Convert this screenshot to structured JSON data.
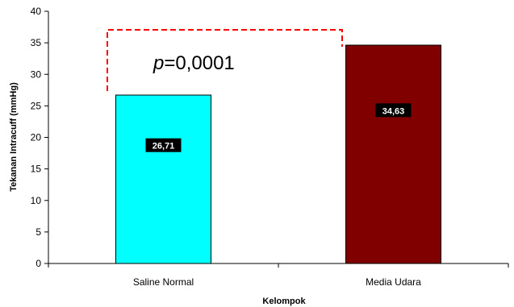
{
  "chart_data": {
    "type": "bar",
    "categories": [
      "Saline Normal",
      "Media Udara"
    ],
    "values": [
      26.71,
      34.63
    ],
    "data_labels": [
      "26,71",
      "34,63"
    ],
    "colors": [
      "#00ffff",
      "#800000"
    ],
    "xlabel": "Kelompok",
    "ylabel": "Tekanan Intracuff (mmHg)",
    "ylim": [
      0,
      40
    ],
    "yticks": [
      0,
      5,
      10,
      15,
      20,
      25,
      30,
      35,
      40
    ],
    "grid": false,
    "legend": "none",
    "annotation": {
      "p_symbol": "p",
      "p_value": "=0,0001",
      "bracket_color": "#ff0000"
    }
  }
}
